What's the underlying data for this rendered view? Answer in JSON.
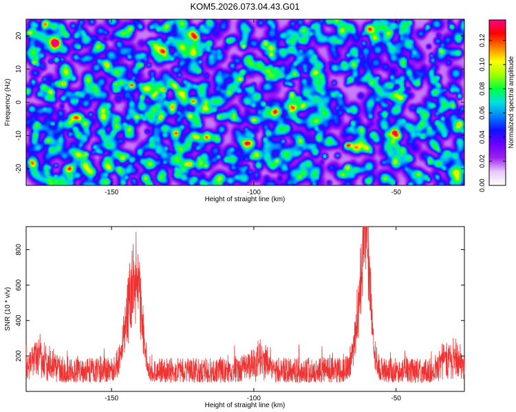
{
  "title": "KOM5.2026.073.04.43.G01",
  "chart_data": [
    {
      "type": "heatmap",
      "xlabel": "Height of straight line (km)",
      "ylabel": "Frequency (Hz)",
      "xlim": [
        -180,
        -26
      ],
      "ylim": [
        -25,
        25
      ],
      "xticks": [
        -150,
        -100,
        -50
      ],
      "yticks": [
        -20,
        -10,
        0,
        10,
        20
      ],
      "colorbar": {
        "label": "Normalized spectral amplitude",
        "range": [
          0,
          0.137
        ],
        "ticks": [
          0.0,
          0.02,
          0.04,
          0.06,
          0.08,
          0.1,
          0.12
        ],
        "tick_labels": [
          "0.00",
          "0.02",
          "0.04",
          "0.06",
          "0.08",
          "0.10",
          "0.12"
        ],
        "colors": [
          "#ffffff",
          "#e8c8ff",
          "#a020f0",
          "#6a00ff",
          "#1010ff",
          "#0080ff",
          "#00e0e0",
          "#00ff40",
          "#a0ff00",
          "#ffff00",
          "#ff8000",
          "#ff0000",
          "#ff0080"
        ]
      },
      "description_values": {
        "background_level": 0.02,
        "peak_level": 0.13
      }
    },
    {
      "type": "line",
      "xlabel": "Height of straight line (km)",
      "ylabel": "SNR (10 * v/v)",
      "xlim": [
        -180,
        -26
      ],
      "ylim": [
        0,
        930
      ],
      "xticks": [
        -150,
        -100,
        -50
      ],
      "yticks": [
        200,
        400,
        600,
        800
      ],
      "color": "#ee3333",
      "baseline_range": [
        50,
        190
      ],
      "peaks": [
        {
          "center": -143,
          "width": 2.4,
          "max": 815
        },
        {
          "center": -140.5,
          "width": 1.5,
          "max": 640
        },
        {
          "center": -61.5,
          "width": 2.2,
          "max": 930
        },
        {
          "center": -60.5,
          "width": 1.2,
          "max": 880
        }
      ],
      "bumps": [
        {
          "center": -175,
          "width": 3,
          "max": 360
        },
        {
          "center": -98,
          "width": 3,
          "max": 330
        },
        {
          "center": -31,
          "width": 3,
          "max": 360
        }
      ]
    }
  ]
}
